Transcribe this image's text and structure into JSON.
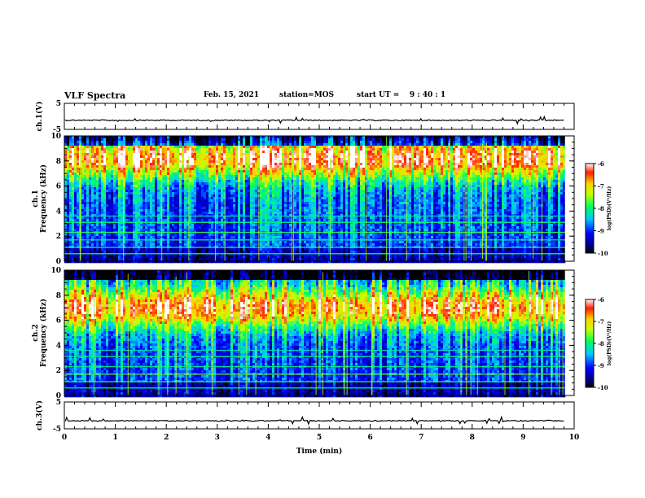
{
  "header": {
    "title": "VLF Spectra",
    "date": "Feb. 15, 2021",
    "station": "station=MOS",
    "start_label": "start  UT =",
    "start_value": "9 : 40 : 1"
  },
  "chart_data": [
    {
      "type": "line",
      "name": "ch1-waveform",
      "ylabel": "ch.1(V)",
      "xlim": [
        0,
        10
      ],
      "ylim": [
        -5,
        5
      ],
      "y_ticks": [
        "5",
        "-5"
      ],
      "baseline": -1.5,
      "x_end": 9.82
    },
    {
      "type": "heatmap",
      "name": "ch1-spectrogram",
      "ylabel": "ch.1\nFrequency (kHz)",
      "xlim": [
        0,
        10
      ],
      "ylim": [
        0,
        10
      ],
      "y_ticks": [
        "0",
        "2",
        "4",
        "6",
        "8",
        "10"
      ],
      "x_end": 9.82,
      "colorbar": {
        "label": "log(PSD)(V²/Hz)",
        "ticks": [
          "-6",
          "-7",
          "-8",
          "-9",
          "-10"
        ],
        "range": [
          -10,
          -6
        ]
      }
    },
    {
      "type": "heatmap",
      "name": "ch2-spectrogram",
      "ylabel": "ch.2\nFrequency (kHz)",
      "xlim": [
        0,
        10
      ],
      "ylim": [
        0,
        10
      ],
      "y_ticks": [
        "0",
        "2",
        "4",
        "6",
        "8",
        "10"
      ],
      "x_end": 9.82,
      "colorbar": {
        "label": "log(PSD)(V²/Hz)",
        "ticks": [
          "-6",
          "-7",
          "-8",
          "-9",
          "-10"
        ],
        "range": [
          -10,
          -6
        ]
      }
    },
    {
      "type": "line",
      "name": "ch3-waveform",
      "ylabel": "ch.3(V)",
      "xlabel": "Time (min)",
      "xlim": [
        0,
        10
      ],
      "ylim": [
        -5,
        5
      ],
      "y_ticks": [
        "5",
        "-5"
      ],
      "x_ticks": [
        "0",
        "1",
        "2",
        "3",
        "4",
        "5",
        "6",
        "7",
        "8",
        "9",
        "10"
      ],
      "baseline": -2.0,
      "x_end": 9.82
    }
  ]
}
